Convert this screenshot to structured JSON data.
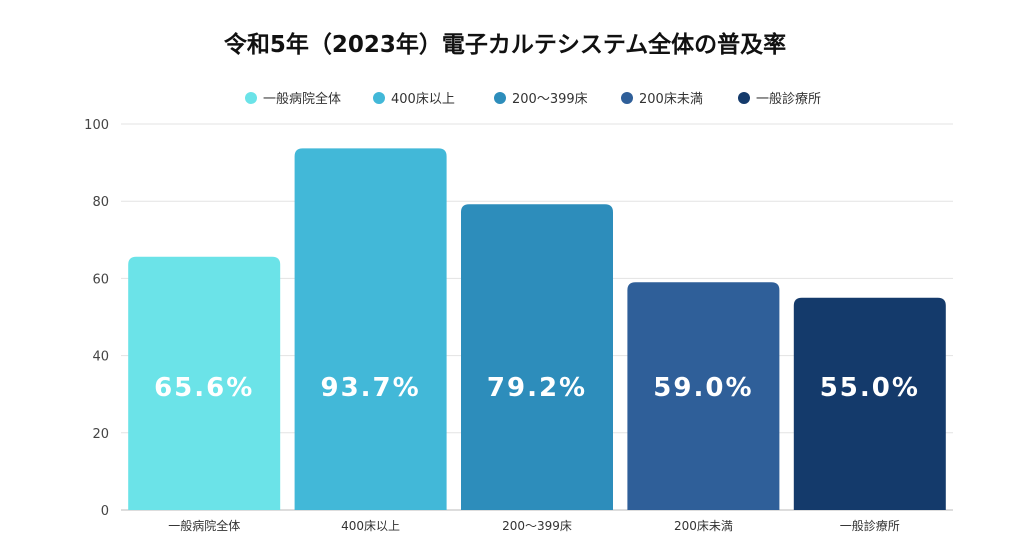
{
  "chart_data": {
    "type": "bar",
    "title": "令和5年（2023年）電子カルテシステム全体の普及率",
    "categories": [
      "一般病院全体",
      "400床以上",
      "200～399床",
      "200床未満",
      "一般診療所"
    ],
    "values": [
      65.6,
      93.7,
      79.2,
      59.0,
      55.0
    ],
    "value_labels": [
      "65.6%",
      "93.7%",
      "79.2%",
      "59.0%",
      "55.0%"
    ],
    "colors": [
      "#6be3e8",
      "#42b8d8",
      "#2d8dbb",
      "#2f5f99",
      "#143a6b"
    ],
    "legend": [
      "一般病院全体",
      "400床以上",
      "200～399床",
      "200床未満",
      "一般診療所"
    ],
    "legend_position": "top",
    "ylim": [
      0,
      100
    ],
    "yticks": [
      0,
      20,
      40,
      60,
      80,
      100
    ],
    "xlabel": "",
    "ylabel": "",
    "grid": true
  }
}
